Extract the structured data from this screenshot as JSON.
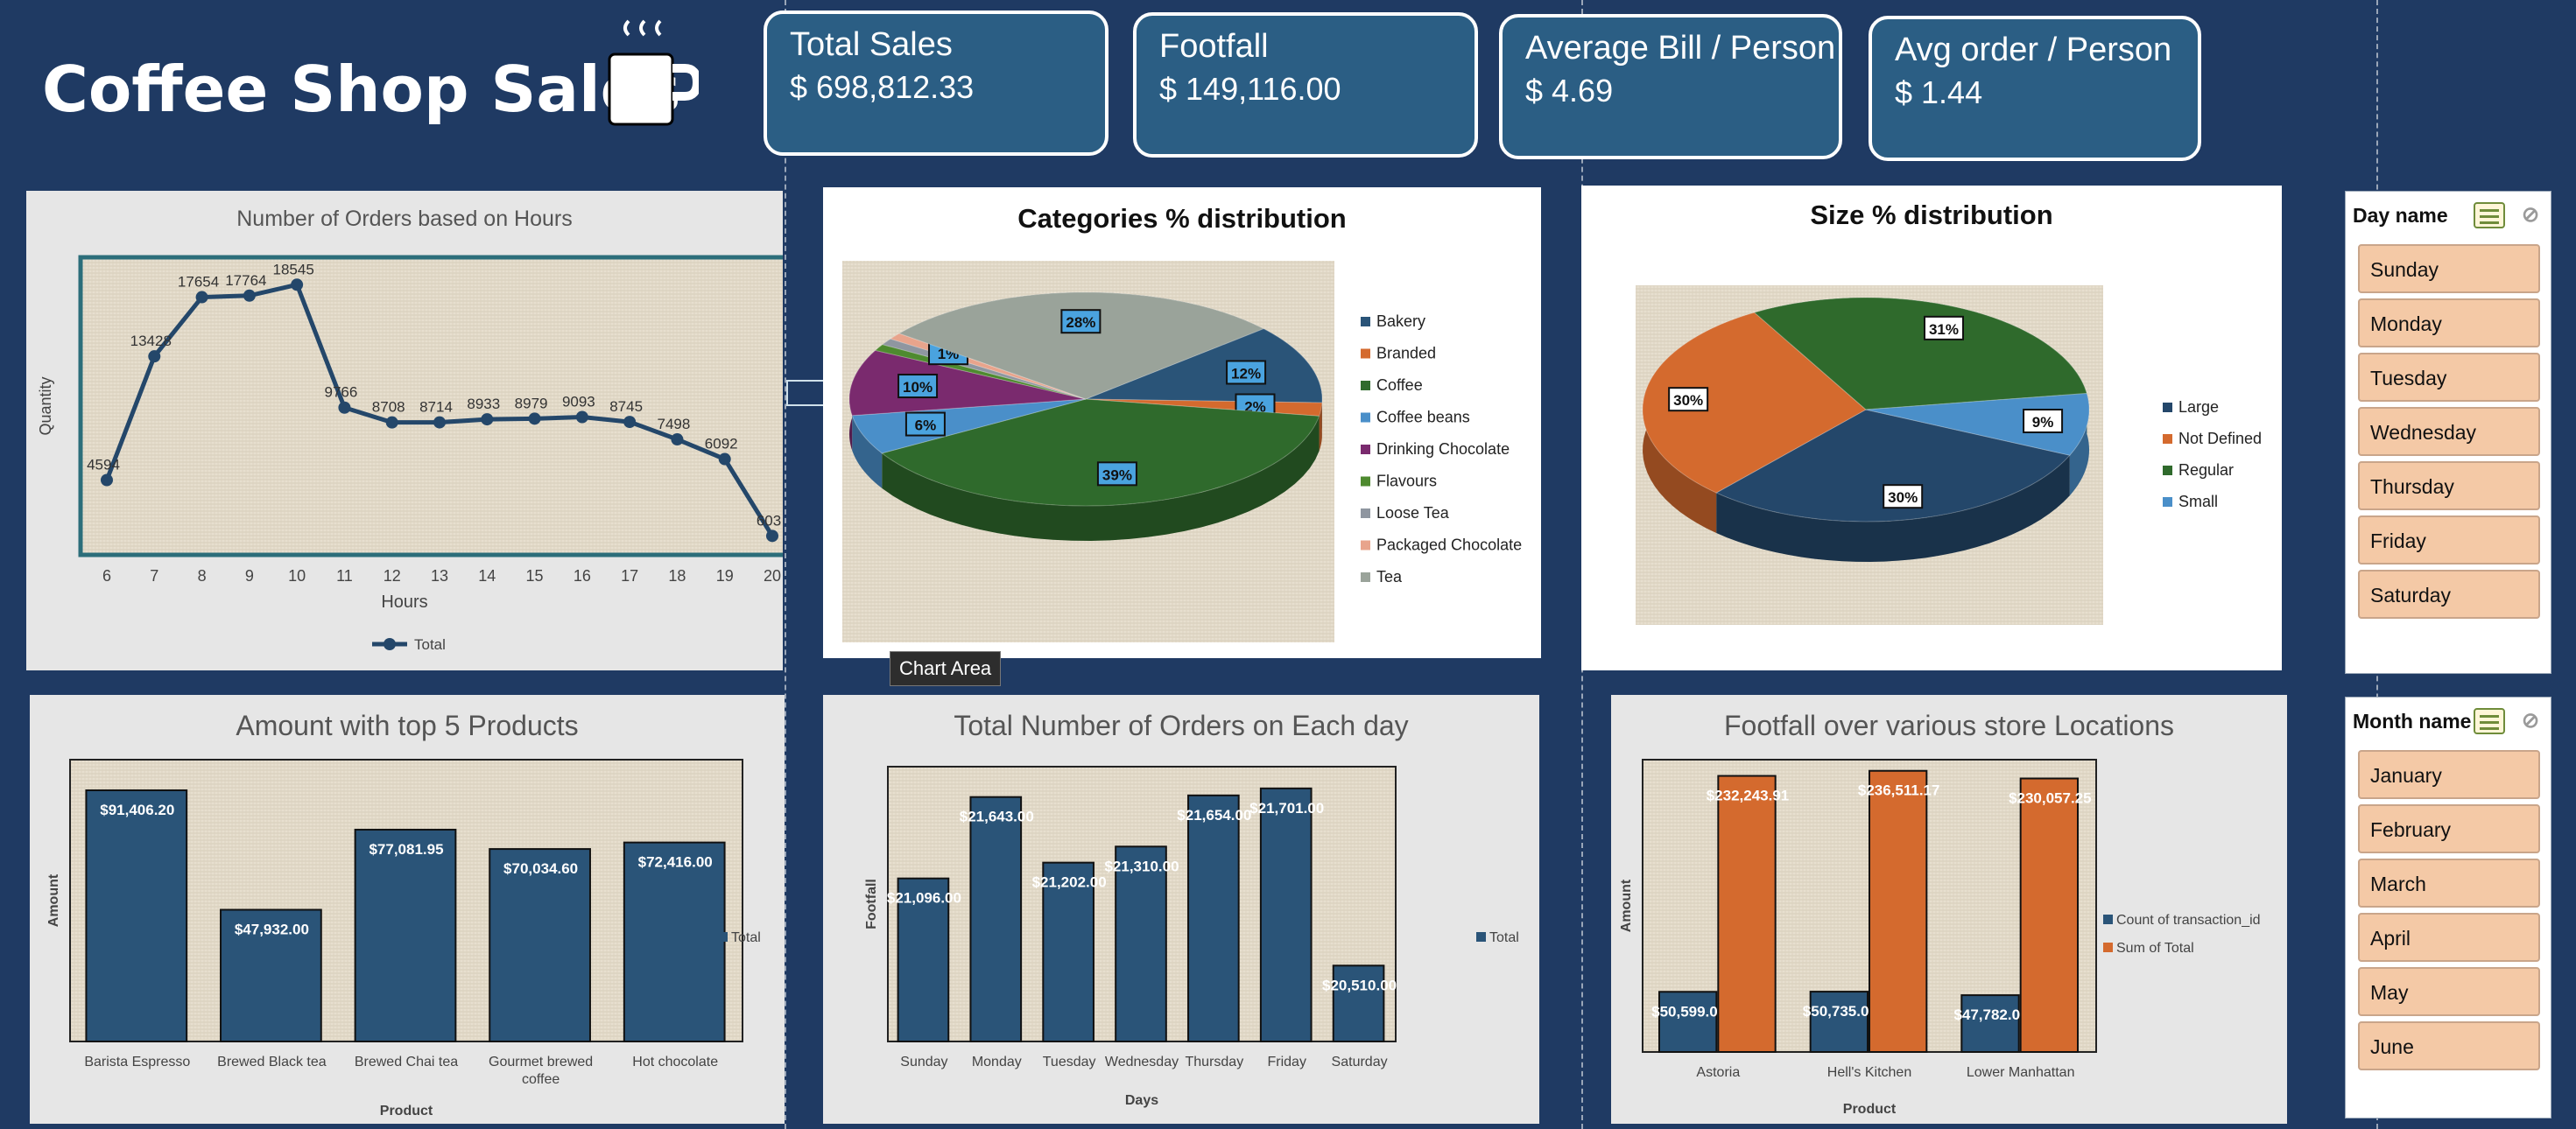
{
  "dashboard": {
    "title": "Coffee Shop Sales",
    "icons": {
      "mug": "coffee-cup-icon"
    }
  },
  "kpis": [
    {
      "label": "Total Sales",
      "value": "$ 698,812.33"
    },
    {
      "label": "Footfall",
      "value": "$ 149,116.00"
    },
    {
      "label": "Average Bill / Person",
      "value": "$  4.69"
    },
    {
      "label": "Avg order / Person",
      "value": "$  1.44"
    }
  ],
  "colors": {
    "background": "#1f3a63",
    "kpi_fill": "#2b5e84",
    "bar_blue": "#2a5478",
    "bar_orange": "#d46a2e",
    "slicer_item": "#f4c9a6"
  },
  "tooltip": {
    "text": "Chart Area"
  },
  "slicers": [
    {
      "header": "Day name",
      "items": [
        "Sunday",
        "Monday",
        "Tuesday",
        "Wednesday",
        "Thursday",
        "Friday",
        "Saturday"
      ],
      "icons": [
        "multi-select-icon",
        "clear-filter-icon"
      ]
    },
    {
      "header": "Month name",
      "items": [
        "January",
        "February",
        "March",
        "April",
        "May",
        "June"
      ],
      "icons": [
        "multi-select-icon",
        "clear-filter-icon"
      ]
    }
  ],
  "chart_data": [
    {
      "id": "hours",
      "type": "line",
      "title": "Number of Orders based on Hours",
      "xlabel": "Hours",
      "ylabel": "Quantity",
      "categories": [
        "6",
        "7",
        "8",
        "9",
        "10",
        "11",
        "12",
        "13",
        "14",
        "15",
        "16",
        "17",
        "18",
        "19",
        "20"
      ],
      "series": [
        {
          "name": "Total",
          "values": [
            4594,
            13428,
            17654,
            17764,
            18545,
            9766,
            8708,
            8714,
            8933,
            8979,
            9093,
            8745,
            7498,
            6092,
            603
          ]
        }
      ],
      "data_labels": [
        "4594",
        "13428",
        "17654",
        "17764",
        "18545",
        "9766",
        "8708",
        "8714",
        "8933",
        "8979",
        "9093",
        "8745",
        "7498",
        "6092",
        "603"
      ],
      "ylim": [
        0,
        20000
      ],
      "legend": "bottom"
    },
    {
      "id": "categories",
      "type": "pie",
      "title": "Categories  % distribution",
      "labels": [
        "Bakery",
        "Branded",
        "Coffee",
        "Coffee beans",
        "Drinking Chocolate",
        "Flavours",
        "Loose Tea",
        "Packaged Chocolate",
        "Tea"
      ],
      "values": [
        12,
        2,
        39,
        6,
        10,
        1,
        1,
        1,
        28
      ],
      "data_labels": [
        "12%",
        "2%",
        "39%",
        "6%",
        "10%",
        "",
        "",
        "1%",
        "28%"
      ],
      "colors": [
        "#2a5478",
        "#d46a2e",
        "#2f6a2c",
        "#4a8fc9",
        "#7a2a6e",
        "#4e8a2f",
        "#8f96a0",
        "#e8a48c",
        "#9aa39a"
      ],
      "legend": "right"
    },
    {
      "id": "sizes",
      "type": "pie",
      "title": "Size % distribution",
      "labels": [
        "Large",
        "Not Defined",
        "Regular",
        "Small"
      ],
      "values": [
        30,
        30,
        31,
        9
      ],
      "data_labels": [
        "30%",
        "30%",
        "31%",
        "9%"
      ],
      "colors": [
        "#24476a",
        "#d46a2e",
        "#2f6a2c",
        "#4a8fc9"
      ],
      "legend": "right"
    },
    {
      "id": "products",
      "type": "bar",
      "title": "Amount with top 5 Products",
      "xlabel": "Product",
      "ylabel": "Amount",
      "categories": [
        "Barista Espresso",
        "Brewed Black tea",
        "Brewed Chai tea",
        "Gourmet brewed coffee",
        "Hot chocolate"
      ],
      "series": [
        {
          "name": "Total",
          "values": [
            91406.2,
            47932.0,
            77081.95,
            70034.6,
            72416.0
          ]
        }
      ],
      "data_labels": [
        "$91,406.20",
        "$47,932.00",
        "$77,081.95",
        "$70,034.60",
        "$72,416.00"
      ],
      "ylim": [
        0,
        100000
      ],
      "legend": "right"
    },
    {
      "id": "days",
      "type": "bar",
      "title": "Total Number of Orders on Each day",
      "xlabel": "Days",
      "ylabel": "Footfall",
      "categories": [
        "Sunday",
        "Monday",
        "Tuesday",
        "Wednesday",
        "Thursday",
        "Friday",
        "Saturday"
      ],
      "series": [
        {
          "name": "Total",
          "values": [
            21096,
            21643,
            21202,
            21310,
            21654,
            21701,
            20510
          ]
        }
      ],
      "data_labels": [
        "$21,096.00",
        "$21,643.00",
        "$21,202.00",
        "$21,310.00",
        "$21,654.00",
        "$21,701.00",
        "$20,510.00"
      ],
      "ylim": [
        20000,
        21800
      ],
      "legend": "right"
    },
    {
      "id": "locations",
      "type": "bar",
      "title": "Footfall over various store Locations",
      "xlabel": "Product",
      "ylabel": "Amount",
      "categories": [
        "Astoria",
        "Hell's Kitchen",
        "Lower Manhattan"
      ],
      "series": [
        {
          "name": "Count of transaction_id",
          "values": [
            50599,
            50735,
            47782
          ],
          "data_labels": [
            "$50,599.00",
            "$50,735.00",
            "$47,782.00"
          ]
        },
        {
          "name": "Sum of Total",
          "values": [
            232243.91,
            236511.17,
            230057.25
          ],
          "data_labels": [
            "$232,243.91",
            "$236,511.17",
            "$230,057.25"
          ]
        }
      ],
      "ylim": [
        0,
        240000
      ],
      "legend": "right"
    }
  ]
}
